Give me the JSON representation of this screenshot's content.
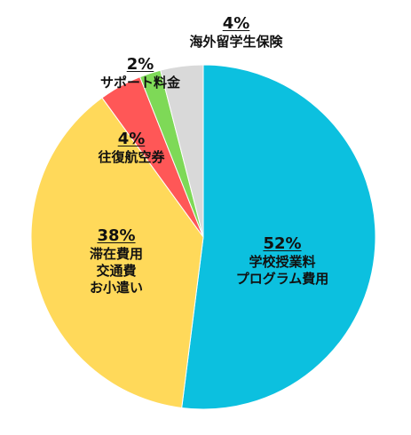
{
  "chart_data": {
    "type": "pie",
    "start": "12 o'clock",
    "direction": "clockwise",
    "slices": [
      {
        "key": "tuition",
        "percent_label": "52%",
        "value": 52,
        "label_lines": [
          "学校授業料",
          "プログラム費用"
        ],
        "color": "#0CC0DF"
      },
      {
        "key": "living",
        "percent_label": "38%",
        "value": 38,
        "label_lines": [
          "滞在費用",
          "交通費",
          "お小遣い"
        ],
        "color": "#FFD95A"
      },
      {
        "key": "airfare",
        "percent_label": "4%",
        "value": 4,
        "label_lines": [
          "往復航空券"
        ],
        "color": "#FF5757"
      },
      {
        "key": "support",
        "percent_label": "2%",
        "value": 2,
        "label_lines": [
          "サポート料金"
        ],
        "color": "#7ED957"
      },
      {
        "key": "insurance",
        "percent_label": "4%",
        "value": 4,
        "label_lines": [
          "海外留学生保険"
        ],
        "color": "#D9D9D9"
      }
    ]
  }
}
